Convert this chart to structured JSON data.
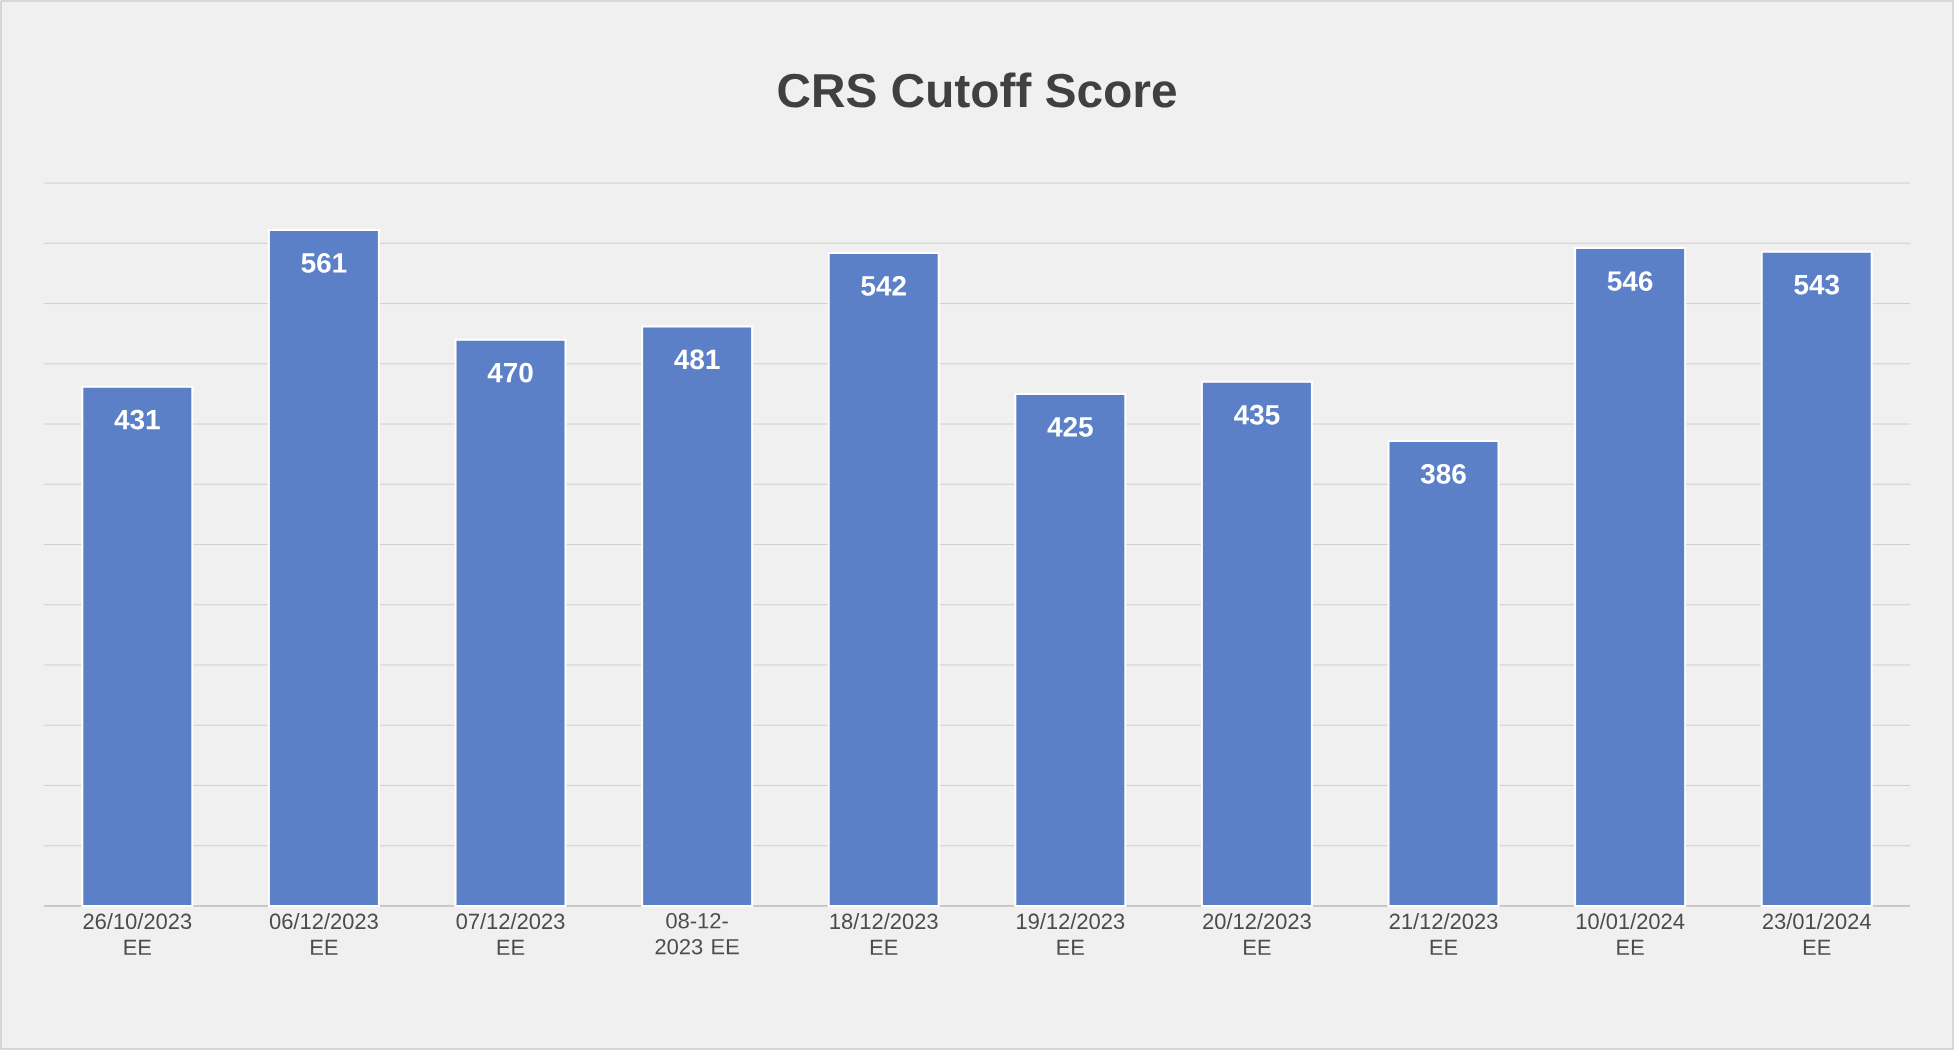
{
  "chart_data": {
    "type": "bar",
    "title": "CRS Cutoff Score",
    "categories": [
      "26/10/2023 EE",
      "06/12/2023 EE",
      "07/12/2023 EE",
      "08-12-2023 EE",
      "18/12/2023 EE",
      "19/12/2023 EE",
      "20/12/2023 EE",
      "21/12/2023 EE",
      "10/01/2024 EE",
      "23/01/2024 EE"
    ],
    "values": [
      431,
      561,
      470,
      481,
      542,
      425,
      435,
      386,
      546,
      543
    ],
    "color": "#5b80c8",
    "tick_labels": "x",
    "grid": "y",
    "data_labels": true
  }
}
